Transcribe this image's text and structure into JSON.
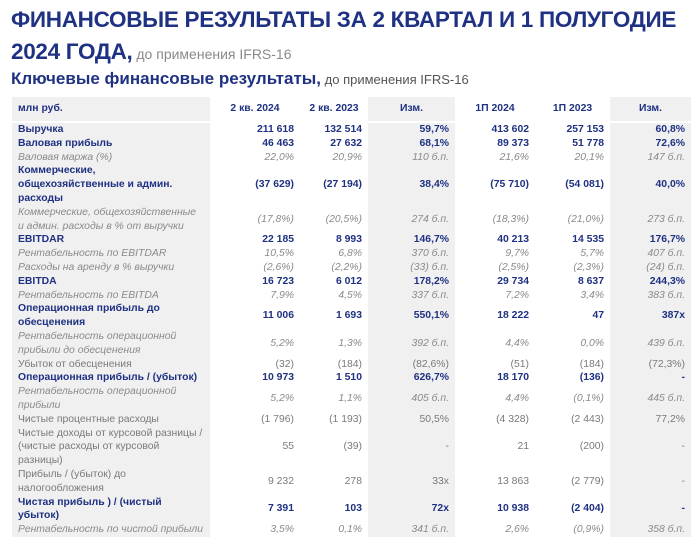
{
  "title": {
    "main": "ФИНАНСОВЫЕ РЕЗУЛЬТАТЫ ЗА 2 КВАРТАЛ И 1 ПОЛУГОДИЕ 2024 ГОДА,",
    "suffix": " до применения IFRS-16"
  },
  "subtitle": {
    "main": "Ключевые финансовые результаты,",
    "suffix": " до применения IFRS-16"
  },
  "colors": {
    "accent": "#1f3182",
    "muted": "#8a8a8a",
    "shade": "#f0f0f1"
  },
  "table": {
    "headers": [
      "млн руб.",
      "2 кв. 2024",
      "2 кв. 2023",
      "Изм.",
      "1П 2024",
      "1П 2023",
      "Изм."
    ],
    "rows": [
      {
        "style": "b",
        "cells": [
          "Выручка",
          "211 618",
          "132 514",
          "59,7%",
          "413 602",
          "257 153",
          "60,8%"
        ]
      },
      {
        "style": "b",
        "cells": [
          "Валовая прибыль",
          "46 463",
          "27 632",
          "68,1%",
          "89 373",
          "51 778",
          "72,6%"
        ]
      },
      {
        "style": "i",
        "cells": [
          "Валовая маржа (%)",
          "22,0%",
          "20,9%",
          "110 б.п.",
          "21,6%",
          "20,1%",
          "147 б.п."
        ]
      },
      {
        "style": "b two",
        "cells": [
          "Коммерческие, общехозяйственные и админ. расходы",
          "(37 629)",
          "(27 194)",
          "38,4%",
          "(75 710)",
          "(54 081)",
          "40,0%"
        ]
      },
      {
        "style": "i two",
        "cells": [
          "Коммерческие, общехозяйственные и админ. расходы в % от выручки",
          "(17,8%)",
          "(20,5%)",
          "274 б.п.",
          "(18,3%)",
          "(21,0%)",
          "273 б.п."
        ]
      },
      {
        "style": "b",
        "cells": [
          "EBITDAR",
          "22 185",
          "8 993",
          "146,7%",
          "40 213",
          "14 535",
          "176,7%"
        ]
      },
      {
        "style": "i",
        "cells": [
          "Рентабельность по EBITDAR",
          "10,5%",
          "6,8%",
          "370 б.п.",
          "9,7%",
          "5,7%",
          "407 б.п."
        ]
      },
      {
        "style": "i",
        "cells": [
          "Расходы на аренду в % выручки",
          "(2,6%)",
          "(2,2%)",
          "(33) б.п.",
          "(2,5%)",
          "(2,3%)",
          "(24) б.п."
        ]
      },
      {
        "style": "b",
        "cells": [
          "EBITDA",
          "16 723",
          "6 012",
          "178,2%",
          "29 734",
          "8 637",
          "244,3%"
        ]
      },
      {
        "style": "i",
        "cells": [
          "Рентабельность по EBITDA",
          "7,9%",
          "4,5%",
          "337 б.п.",
          "7,2%",
          "3,4%",
          "383 б.п."
        ]
      },
      {
        "style": "b two",
        "cells": [
          "Операционная прибыль до обесценения",
          "11 006",
          "1 693",
          "550,1%",
          "18 222",
          "47",
          "387x"
        ]
      },
      {
        "style": "i two",
        "cells": [
          "Рентабельность операционной прибыли до обесценения",
          "5,2%",
          "1,3%",
          "392 б.п.",
          "4,4%",
          "0,0%",
          "439 б.п."
        ]
      },
      {
        "style": "n",
        "cells": [
          "Убыток от обесценения",
          "(32)",
          "(184)",
          "(82,6%)",
          "(51)",
          "(184)",
          "(72,3%)"
        ]
      },
      {
        "style": "b",
        "cells": [
          "Операционная прибыль / (убыток)",
          "10 973",
          "1 510",
          "626,7%",
          "18 170",
          "(136)",
          "-"
        ]
      },
      {
        "style": "i",
        "cells": [
          "Рентабельность операционной прибыли",
          "5,2%",
          "1,1%",
          "405 б.п.",
          "4,4%",
          "(0,1%)",
          "445 б.п."
        ]
      },
      {
        "style": "n",
        "cells": [
          "Чистые процентные расходы",
          "(1 796)",
          "(1 193)",
          "50,5%",
          "(4 328)",
          "(2 443)",
          "77,2%"
        ]
      },
      {
        "style": "n two",
        "cells": [
          "Чистые доходы от курсовой разницы / (чистые расходы от курсовой разницы)",
          "55",
          "(39)",
          "-",
          "21",
          "(200)",
          "-"
        ]
      },
      {
        "style": "n",
        "cells": [
          "Прибыль / (убыток) до налогообложения",
          "9 232",
          "278",
          "33x",
          "13 863",
          "(2 779)",
          "-"
        ]
      },
      {
        "style": "b",
        "cells": [
          "Чистая прибыль ) / (чистый убыток)",
          "7 391",
          "103",
          "72x",
          "10 938",
          "(2 404)",
          "-"
        ]
      },
      {
        "style": "i",
        "cells": [
          "Рентабельность по чистой прибыли",
          "3,5%",
          "0,1%",
          "341 б.п.",
          "2,6%",
          "(0,9%)",
          "358 б.п."
        ]
      }
    ]
  }
}
